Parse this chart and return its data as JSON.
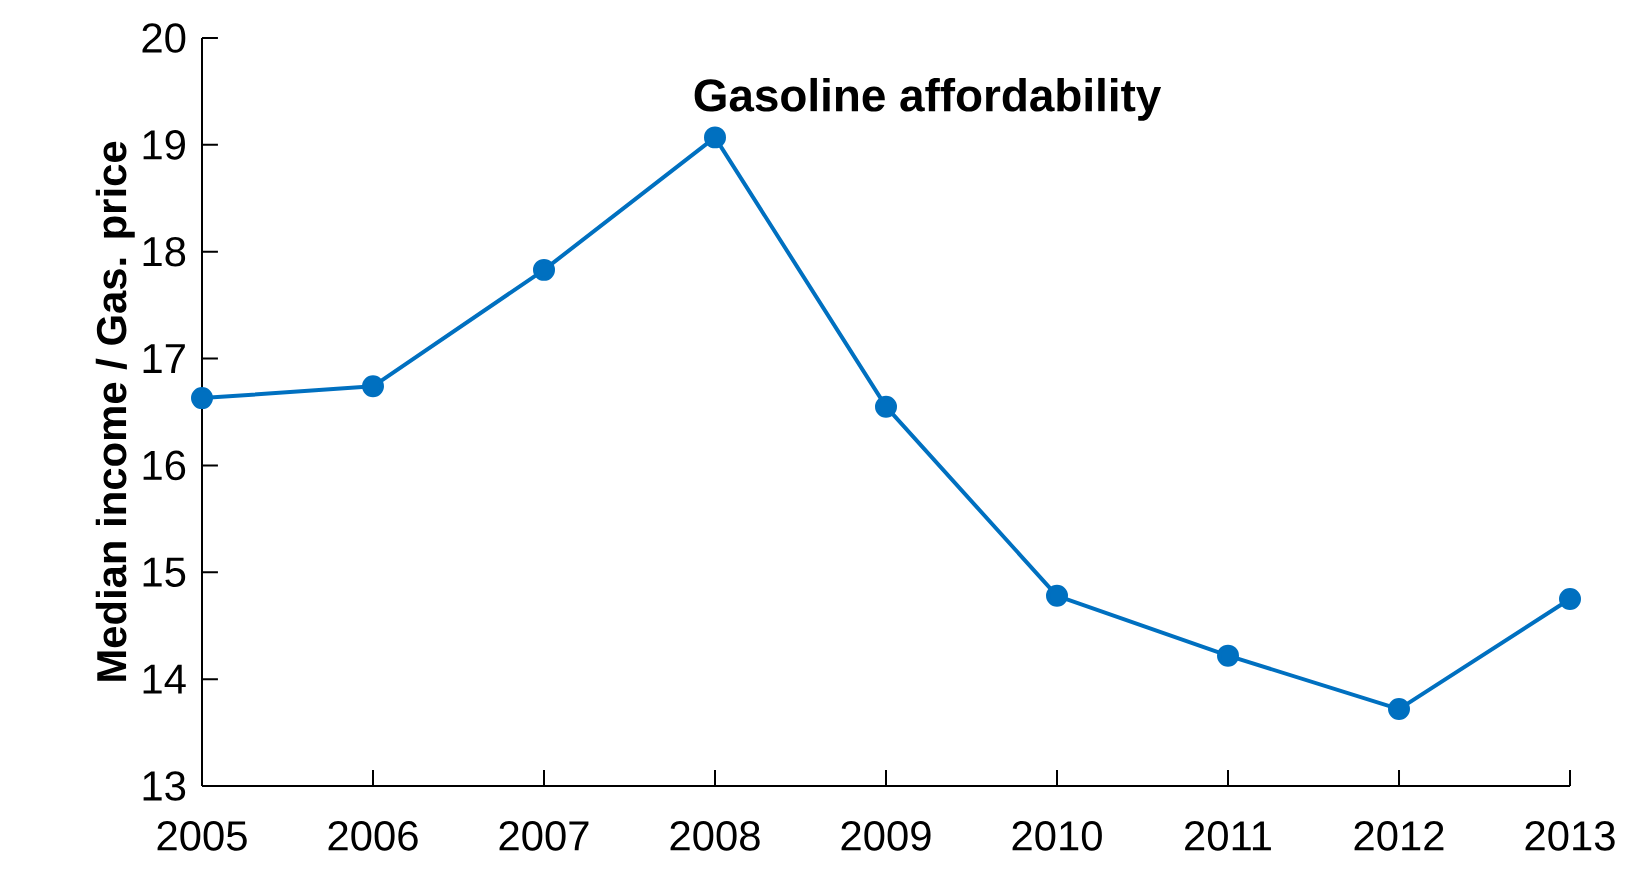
{
  "chart_data": {
    "type": "line",
    "title": "Gasoline affordability",
    "ylabel": "Median income  / Gas. price",
    "x": [
      2005,
      2006,
      2007,
      2008,
      2009,
      2010,
      2011,
      2012,
      2013
    ],
    "series": [
      {
        "color": "#0070c0",
        "values": [
          16.63,
          16.74,
          17.83,
          19.07,
          16.55,
          14.78,
          14.22,
          13.72,
          14.75
        ]
      }
    ],
    "xlim": [
      2005,
      2013
    ],
    "xticks": [
      2005,
      2006,
      2007,
      2008,
      2009,
      2010,
      2011,
      2012,
      2013
    ],
    "ylim": [
      13,
      20
    ],
    "yticks": [
      13,
      14,
      15,
      16,
      17,
      18,
      19,
      20
    ],
    "grid": false,
    "marker": "circle",
    "line_style": "solid"
  }
}
